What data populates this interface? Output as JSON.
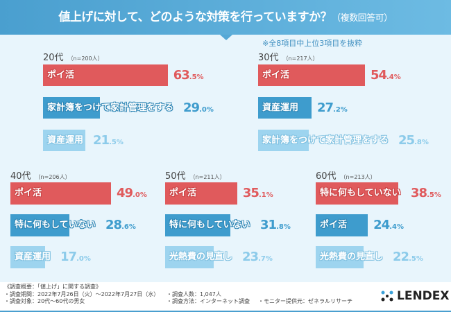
{
  "header": {
    "title": "値上げに対して、どのような対策を行っていますか？",
    "subtitle": "（複数回答可）"
  },
  "note": "※全8項目中上位3項目を抜粋",
  "colors": {
    "red": "#e05a5c",
    "blue": "#3e9ccd",
    "light": "#9dd4ef"
  },
  "chart_data": [
    {
      "type": "bar",
      "title": "20代",
      "n": "（n=200人）",
      "categories": [
        "ポイ活",
        "家計簿をつけて家計管理をする",
        "資産運用"
      ],
      "values": [
        63.5,
        29.0,
        21.5
      ],
      "pct": [
        [
          "63",
          ".5%"
        ],
        [
          "29",
          ".0%"
        ],
        [
          "21",
          ".5%"
        ]
      ]
    },
    {
      "type": "bar",
      "title": "30代",
      "n": "（n=217人）",
      "categories": [
        "ポイ活",
        "資産運用",
        "家計簿をつけて家計管理をする"
      ],
      "values": [
        54.4,
        27.2,
        25.8
      ],
      "pct": [
        [
          "54",
          ".4%"
        ],
        [
          "27",
          ".2%"
        ],
        [
          "25",
          ".8%"
        ]
      ]
    },
    {
      "type": "bar",
      "title": "40代",
      "n": "（n=206人）",
      "categories": [
        "ポイ活",
        "特に何もしていない",
        "資産運用"
      ],
      "values": [
        49.0,
        28.6,
        17.0
      ],
      "pct": [
        [
          "49",
          ".0%"
        ],
        [
          "28",
          ".6%"
        ],
        [
          "17",
          ".0%"
        ]
      ]
    },
    {
      "type": "bar",
      "title": "50代",
      "n": "（n=211人）",
      "categories": [
        "ポイ活",
        "特に何もしていない",
        "光熱費の見直し"
      ],
      "values": [
        35.1,
        31.8,
        23.7
      ],
      "pct": [
        [
          "35",
          ".1%"
        ],
        [
          "31",
          ".8%"
        ],
        [
          "23",
          ".7%"
        ]
      ]
    },
    {
      "type": "bar",
      "title": "60代",
      "n": "（n=213人）",
      "categories": [
        "特に何もしていない",
        "ポイ活",
        "光熱費の見直し"
      ],
      "values": [
        38.5,
        24.4,
        22.5
      ],
      "pct": [
        [
          "38",
          ".5%"
        ],
        [
          "24",
          ".4%"
        ],
        [
          "22",
          ".5%"
        ]
      ]
    }
  ],
  "footer": {
    "summary": "《調査概要：「値上げ」に関する調査》",
    "period": "・調査期間：2022年7月26日（火）～2022年7月27日（水）",
    "target": "・調査対象：20代～60代の男女",
    "count": "・調査人数：1,047人",
    "method": "・調査方法：インターネット調査",
    "monitor": "・モニター提供元：ゼネラルリサーチ",
    "logo": "LENDEX"
  }
}
